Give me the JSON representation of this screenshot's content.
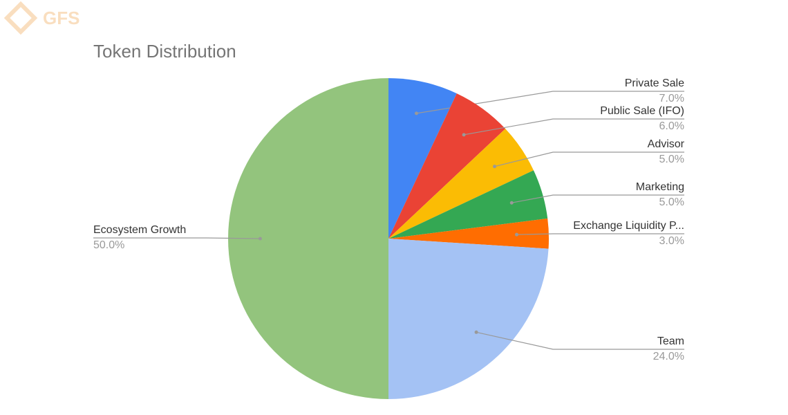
{
  "logo": "GFS",
  "chart_data": {
    "type": "pie",
    "title": "Token Distribution",
    "categories": [
      "Private Sale",
      "Public Sale (IFO)",
      "Advisor",
      "Marketing",
      "Exchange Liquidity P...",
      "Team",
      "Ecosystem Growth"
    ],
    "values": [
      7,
      6,
      5,
      5,
      3,
      24,
      50
    ],
    "value_labels": [
      "7.0%",
      "6.0%",
      "5.0%",
      "5.0%",
      "3.0%",
      "24.0%",
      "50.0%"
    ],
    "colors": [
      "#4285f4",
      "#ea4335",
      "#fbbc04",
      "#34a853",
      "#ff6d01",
      "#a4c2f4",
      "#93c47d"
    ]
  }
}
